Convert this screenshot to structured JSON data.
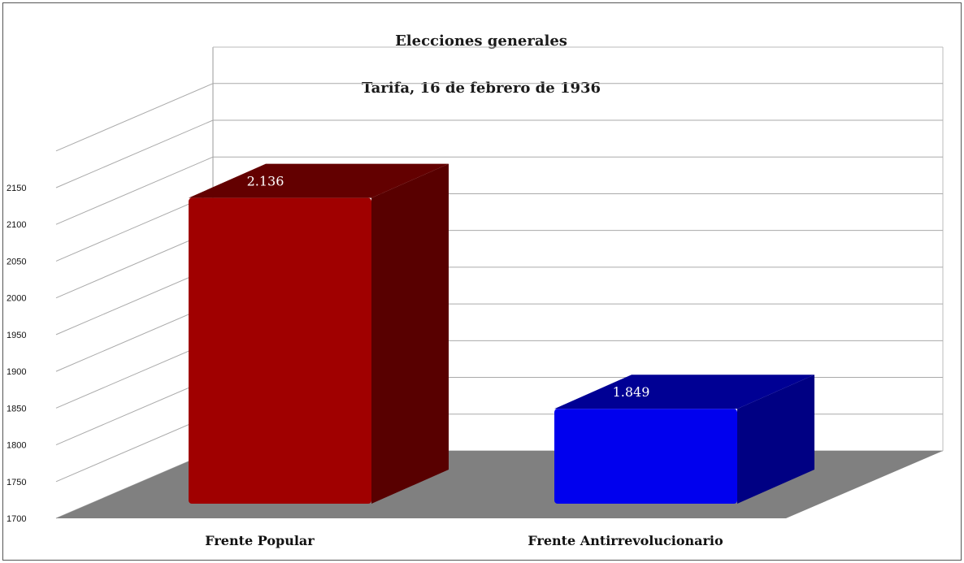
{
  "chart_data": {
    "type": "bar",
    "title": "Elecciones generales",
    "subtitle": "Tarifa, 16 de febrero de 1936",
    "categories": [
      "Frente Popular",
      "Frente Antirrevolucionario"
    ],
    "values": [
      2136,
      1849
    ],
    "data_labels": [
      "2.136",
      "1.849"
    ],
    "colors": [
      "#a00000",
      "#0000ee"
    ],
    "ylim": [
      1700,
      2150
    ],
    "yticks": [
      "1700",
      "1750",
      "1800",
      "1850",
      "1900",
      "1950",
      "2000",
      "2050",
      "2100",
      "2150"
    ],
    "grid": true,
    "legend": "none",
    "style": "3d"
  }
}
